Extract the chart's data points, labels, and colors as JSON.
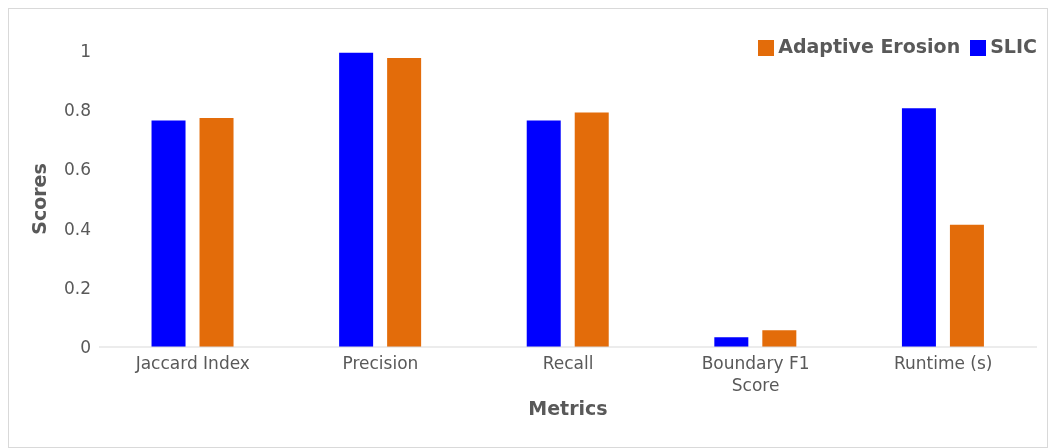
{
  "chart_data": {
    "type": "bar",
    "xlabel": "Metrics",
    "ylabel": "Scores",
    "categories": [
      "Jaccard Index",
      "Precision",
      "Recall",
      "Boundary F1 Score",
      "Runtime (s)"
    ],
    "series": [
      {
        "name": "SLIC",
        "color": "#0000ff",
        "values": [
          0.765,
          0.994,
          0.765,
          0.033,
          0.807
        ]
      },
      {
        "name": "Adaptive Erosion",
        "color": "#e36c0a",
        "values": [
          0.774,
          0.976,
          0.792,
          0.057,
          0.413
        ]
      }
    ],
    "ylim": [
      0,
      1
    ],
    "yticks": [
      0,
      0.2,
      0.4,
      0.6,
      0.8,
      1
    ],
    "grid": false,
    "legend": "top right"
  }
}
